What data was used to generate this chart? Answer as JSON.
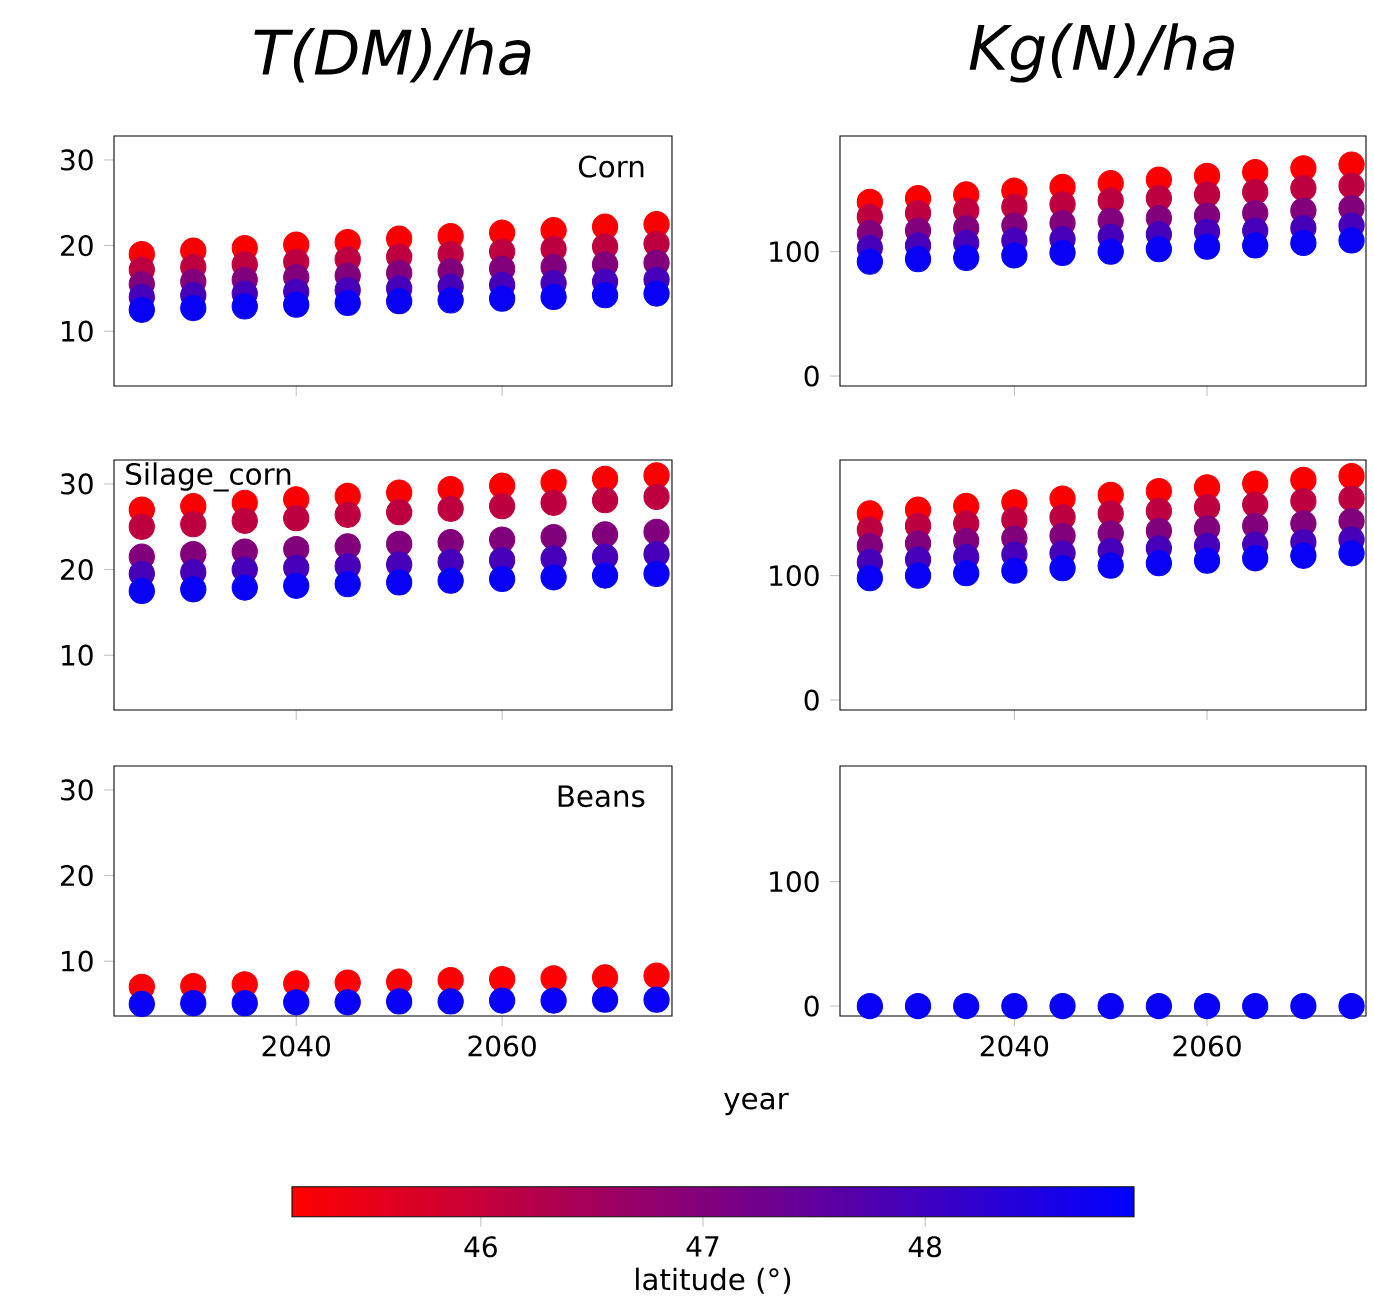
{
  "chart_data": [
    {
      "type": "scatter",
      "title": "T(DM)/ha",
      "annotations": [
        "Corn"
      ],
      "xlim": [
        2022.3,
        2076.5
      ],
      "ylim": [
        3.6,
        32.8
      ],
      "xticks": [
        2040,
        2060
      ],
      "yticks": [
        10,
        20,
        30
      ],
      "tick_labels": "y",
      "marker": "circle",
      "x": [
        2025,
        2030,
        2035,
        2040,
        2045,
        2050,
        2055,
        2060,
        2065,
        2070,
        2075
      ],
      "series": [
        {
          "color": "#fb0003",
          "values": [
            19.0,
            19.4,
            19.7,
            20.1,
            20.4,
            20.8,
            21.1,
            21.5,
            21.8,
            22.2,
            22.5
          ]
        },
        {
          "color": "#bf0040",
          "values": [
            17.2,
            17.5,
            17.8,
            18.1,
            18.4,
            18.7,
            19.0,
            19.3,
            19.6,
            19.9,
            20.2
          ]
        },
        {
          "color": "#83007c",
          "values": [
            15.5,
            15.8,
            16.0,
            16.3,
            16.5,
            16.8,
            17.0,
            17.3,
            17.5,
            17.8,
            18.0
          ]
        },
        {
          "color": "#4600b9",
          "values": [
            14.0,
            14.2,
            14.4,
            14.6,
            14.8,
            15.0,
            15.2,
            15.4,
            15.6,
            15.8,
            16.0
          ]
        },
        {
          "color": "#0900f6",
          "values": [
            12.5,
            12.7,
            12.9,
            13.1,
            13.3,
            13.5,
            13.6,
            13.8,
            14.0,
            14.2,
            14.4
          ]
        }
      ]
    },
    {
      "type": "scatter",
      "title": "Kg(N)/ha",
      "xlim": [
        2021.9,
        2076.5
      ],
      "ylim": [
        -8,
        193
      ],
      "xticks": [
        2040,
        2060
      ],
      "yticks": [
        0,
        100
      ],
      "tick_labels": "y",
      "marker": "circle",
      "x": [
        2025,
        2030,
        2035,
        2040,
        2045,
        2050,
        2055,
        2060,
        2065,
        2070,
        2075
      ],
      "series": [
        {
          "color": "#fb0003",
          "values": [
            140,
            143,
            146,
            149,
            152,
            155,
            158,
            161,
            164,
            167,
            170
          ]
        },
        {
          "color": "#bf0040",
          "values": [
            128,
            131,
            133,
            136,
            138,
            141,
            143,
            146,
            148,
            151,
            153
          ]
        },
        {
          "color": "#83007c",
          "values": [
            115,
            117,
            119,
            121,
            123,
            125,
            127,
            129,
            131,
            133,
            135
          ]
        },
        {
          "color": "#4600b9",
          "values": [
            103,
            105,
            107,
            109,
            110,
            112,
            114,
            116,
            117,
            119,
            121
          ]
        },
        {
          "color": "#0900f6",
          "values": [
            92,
            94,
            95,
            97,
            99,
            100,
            102,
            104,
            105,
            107,
            109
          ]
        }
      ]
    },
    {
      "type": "scatter",
      "annotations": [
        "Silage_corn"
      ],
      "xlim": [
        2022.3,
        2076.5
      ],
      "ylim": [
        3.6,
        32.8
      ],
      "xticks": [
        2040,
        2060
      ],
      "yticks": [
        10,
        20,
        30
      ],
      "tick_labels": "y",
      "marker": "circle",
      "x": [
        2025,
        2030,
        2035,
        2040,
        2045,
        2050,
        2055,
        2060,
        2065,
        2070,
        2075
      ],
      "series": [
        {
          "color": "#fb0003",
          "values": [
            27.0,
            27.4,
            27.8,
            28.2,
            28.6,
            29.0,
            29.4,
            29.8,
            30.2,
            30.6,
            31.0
          ]
        },
        {
          "color": "#bf0040",
          "values": [
            25.0,
            25.3,
            25.7,
            26.0,
            26.4,
            26.7,
            27.1,
            27.4,
            27.8,
            28.1,
            28.5
          ]
        },
        {
          "color": "#83007c",
          "values": [
            21.5,
            21.8,
            22.1,
            22.4,
            22.7,
            23.0,
            23.2,
            23.5,
            23.8,
            24.1,
            24.4
          ]
        },
        {
          "color": "#4600b9",
          "values": [
            19.5,
            19.7,
            20.0,
            20.2,
            20.4,
            20.6,
            20.9,
            21.1,
            21.3,
            21.5,
            21.8
          ]
        },
        {
          "color": "#0900f6",
          "values": [
            17.5,
            17.7,
            17.9,
            18.1,
            18.3,
            18.5,
            18.7,
            18.9,
            19.1,
            19.3,
            19.5
          ]
        }
      ]
    },
    {
      "type": "scatter",
      "xlim": [
        2021.9,
        2076.5
      ],
      "ylim": [
        -8,
        193
      ],
      "xticks": [
        2040,
        2060
      ],
      "yticks": [
        0,
        100
      ],
      "tick_labels": "y",
      "marker": "circle",
      "x": [
        2025,
        2030,
        2035,
        2040,
        2045,
        2050,
        2055,
        2060,
        2065,
        2070,
        2075
      ],
      "series": [
        {
          "color": "#fb0003",
          "values": [
            150,
            153,
            156,
            159,
            162,
            165,
            168,
            171,
            174,
            177,
            180
          ]
        },
        {
          "color": "#bf0040",
          "values": [
            137,
            140,
            142,
            145,
            147,
            150,
            152,
            155,
            157,
            160,
            162
          ]
        },
        {
          "color": "#83007c",
          "values": [
            124,
            126,
            128,
            130,
            132,
            134,
            136,
            138,
            140,
            142,
            144
          ]
        },
        {
          "color": "#4600b9",
          "values": [
            111,
            113,
            115,
            117,
            118,
            120,
            122,
            124,
            125,
            127,
            129
          ]
        },
        {
          "color": "#0900f6",
          "values": [
            98,
            100,
            102,
            104,
            106,
            108,
            110,
            112,
            114,
            116,
            118
          ]
        }
      ]
    },
    {
      "type": "scatter",
      "annotations": [
        "Beans"
      ],
      "xlabel": "year",
      "clabel": "latitude (°)",
      "cticks": [
        46,
        47,
        48
      ],
      "xlim": [
        2022.3,
        2076.5
      ],
      "ylim": [
        3.6,
        32.8
      ],
      "xticks": [
        2040,
        2060
      ],
      "yticks": [
        10,
        20,
        30
      ],
      "marker": "circle",
      "clim": [
        45.15,
        48.94
      ],
      "x": [
        2025,
        2030,
        2035,
        2040,
        2045,
        2050,
        2055,
        2060,
        2065,
        2070,
        2075,
        2025,
        2030,
        2035,
        2040,
        2045,
        2050,
        2055,
        2060,
        2065,
        2070,
        2075
      ],
      "values": [
        7.0,
        7.1,
        7.3,
        7.4,
        7.5,
        7.6,
        7.8,
        7.9,
        8.0,
        8.1,
        8.3,
        5.0,
        5.1,
        5.1,
        5.2,
        5.2,
        5.3,
        5.3,
        5.4,
        5.4,
        5.5,
        5.5
      ],
      "cvalues": [
        45.2,
        45.2,
        45.2,
        45.2,
        45.2,
        45.2,
        45.2,
        45.2,
        45.2,
        45.2,
        45.2,
        48.8,
        48.8,
        48.8,
        48.8,
        48.8,
        48.8,
        48.8,
        48.8,
        48.8,
        48.8,
        48.8
      ]
    },
    {
      "type": "scatter",
      "xlim": [
        2021.9,
        2076.5
      ],
      "ylim": [
        -8,
        193
      ],
      "xticks": [
        2040,
        2060
      ],
      "yticks": [
        0,
        100
      ],
      "marker": "circle",
      "x": [
        2025,
        2030,
        2035,
        2040,
        2045,
        2050,
        2055,
        2060,
        2065,
        2070,
        2075
      ],
      "series": [
        {
          "color": "#0900f6",
          "values": [
            0,
            0,
            0,
            0,
            0,
            0,
            0,
            0,
            0,
            0,
            0
          ]
        }
      ]
    }
  ]
}
